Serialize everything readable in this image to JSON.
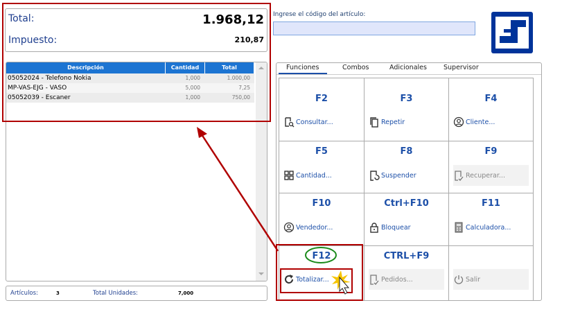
{
  "totals": {
    "total_label": "Total:",
    "total_value": "1.968,12",
    "tax_label": "Impuesto:",
    "tax_value": "210,87"
  },
  "grid": {
    "columns": [
      "Descripción",
      "Cantidad",
      "Total"
    ],
    "rows": [
      {
        "descripcion": "05052024 - Telefono Nokia",
        "cantidad": "1,000",
        "total": "1.000,00"
      },
      {
        "descripcion": "MP-VAS-EJG - VASO",
        "cantidad": "5,000",
        "total": "7,25"
      },
      {
        "descripcion": "05052039 - Escaner",
        "cantidad": "1,000",
        "total": "750,00"
      }
    ]
  },
  "footer": {
    "articulos_label": "Artículos:",
    "articulos_value": "3",
    "unidades_label": "Total Unidades:",
    "unidades_value": "7,000"
  },
  "search": {
    "label": "Ingrese el código del artículo:",
    "value": ""
  },
  "tabs": [
    "Funciones",
    "Combos",
    "Adicionales",
    "Supervisor"
  ],
  "functions": [
    {
      "key": "F2",
      "label": "Consultar...",
      "icon": "search-document-icon",
      "enabled": true
    },
    {
      "key": "F3",
      "label": "Repetir",
      "icon": "copy-icon",
      "enabled": true
    },
    {
      "key": "F4",
      "label": "Cliente...",
      "icon": "user-circle-icon",
      "enabled": true
    },
    {
      "key": "F5",
      "label": "Cantidad...",
      "icon": "grid-icon",
      "enabled": true
    },
    {
      "key": "F8",
      "label": "Suspender",
      "icon": "suspend-icon",
      "enabled": true
    },
    {
      "key": "F9",
      "label": "Recuperar...",
      "icon": "document-check-icon",
      "enabled": false
    },
    {
      "key": "F10",
      "label": "Vendedor...",
      "icon": "user-circle-icon",
      "enabled": true
    },
    {
      "key": "Ctrl+F10",
      "label": "Bloquear",
      "icon": "lock-icon",
      "enabled": true
    },
    {
      "key": "F11",
      "label": "Calculadora...",
      "icon": "calculator-icon",
      "enabled": true
    },
    {
      "key": "F12",
      "label": "Totalizar...",
      "icon": "refresh-icon",
      "enabled": true
    },
    {
      "key": "CTRL+F9",
      "label": "Pedidos...",
      "icon": "document-check-icon",
      "enabled": false
    },
    {
      "key": "",
      "label": "Salir",
      "icon": "power-icon",
      "enabled": false
    }
  ],
  "colors": {
    "accent": "#1c74d2",
    "highlight_red": "#b00000",
    "highlight_green": "#1a8a1a"
  }
}
